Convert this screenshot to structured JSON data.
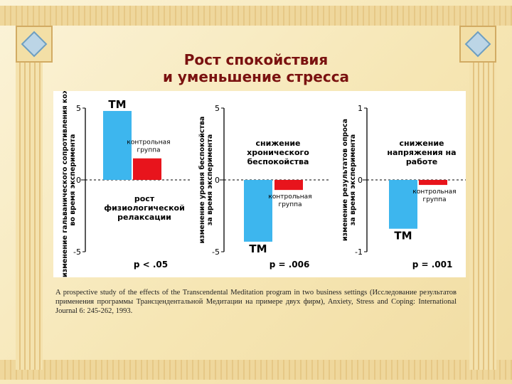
{
  "title": {
    "line1": "Рост спокойствия",
    "line2": "и уменьшение стресса"
  },
  "chart_data": [
    {
      "type": "bar",
      "ylabel": "изменение гальванического сопротивления кожи во время эксперимента",
      "ylim": [
        -5,
        5
      ],
      "yticks": [
        "5",
        "0",
        "-5"
      ],
      "annotation": "рост физиологической релаксации",
      "p_value": "p < .05",
      "series": [
        {
          "label": "ТМ",
          "value": 4.8,
          "color": "#3db6ee"
        },
        {
          "label": "контрольная группа",
          "value": 1.5,
          "color": "#e8141c"
        }
      ]
    },
    {
      "type": "bar",
      "ylabel": "изменение уровня беспокойства за время эксперимента",
      "ylim": [
        -5,
        5
      ],
      "yticks": [
        "5",
        "0",
        "-5"
      ],
      "annotation": "снижение хронического беспокойства",
      "p_value": "p = .006",
      "series": [
        {
          "label": "ТМ",
          "value": -4.3,
          "color": "#3db6ee"
        },
        {
          "label": "контрольная группа",
          "value": -0.7,
          "color": "#e8141c"
        }
      ]
    },
    {
      "type": "bar",
      "ylabel": "изменение результатов опроса за время эксперимента",
      "ylim": [
        -1,
        1
      ],
      "yticks": [
        "1",
        "0",
        "-1"
      ],
      "annotation": "снижение напряжения на работе",
      "p_value": "p = .001",
      "series": [
        {
          "label": "ТМ",
          "value": -0.68,
          "color": "#3db6ee"
        },
        {
          "label": "контрольная группа",
          "value": -0.07,
          "color": "#e8141c"
        }
      ]
    }
  ],
  "caption": "A prospective study of the effects of the Transcendental Meditation program in two business settings (Исследование результатов применения программы Трансцендентальной Медитации на примере двух фирм), Anxiety, Stress and Coping: International Journal 6: 245-262, 1993."
}
